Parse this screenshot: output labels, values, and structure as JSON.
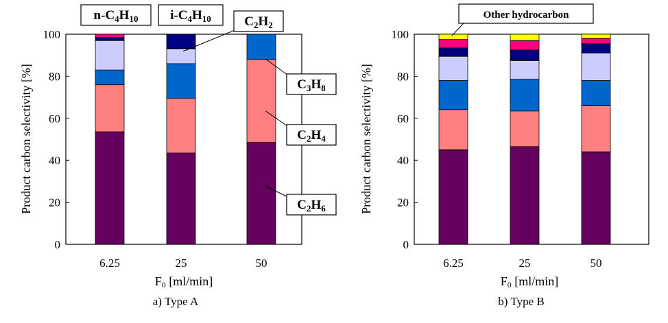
{
  "colors": {
    "C2H6": "#66005f",
    "C2H4": "#ff8080",
    "C3H8": "#0066cc",
    "C2H2": "#ccccff",
    "i-C4H10": "#000080",
    "n-C4H10": "#ff0080",
    "other": "#ffff00"
  },
  "chart_data": [
    {
      "type": "bar",
      "stacked": true,
      "categories": [
        "6.25",
        "25",
        "50"
      ],
      "xlabel": "F₀ [ml/min]",
      "ylabel": "Product carbon selectivity [%]",
      "caption": "a) Type A",
      "ylim": [
        0,
        100
      ],
      "yticks": [
        "0",
        "20",
        "40",
        "60",
        "80",
        "100"
      ],
      "series": [
        {
          "name": "C2H6",
          "key": "C2H6",
          "values": [
            53.5,
            43.5,
            48.5
          ]
        },
        {
          "name": "C2H4",
          "key": "C2H4",
          "values": [
            22.5,
            26.0,
            39.5
          ]
        },
        {
          "name": "C3H8",
          "key": "C3H8",
          "values": [
            7.0,
            16.5,
            12.0
          ]
        },
        {
          "name": "C2H2",
          "key": "C2H2",
          "values": [
            14.0,
            7.0,
            0.0
          ]
        },
        {
          "name": "i-C4H10",
          "key": "i-C4H10",
          "values": [
            1.5,
            7.0,
            0.0
          ]
        },
        {
          "name": "n-C4H10",
          "key": "n-C4H10",
          "values": [
            1.5,
            0.0,
            0.0
          ]
        },
        {
          "name": "Other hydrocarbon",
          "key": "other",
          "values": [
            0.0,
            0.0,
            0.0
          ]
        }
      ]
    },
    {
      "type": "bar",
      "stacked": true,
      "categories": [
        "6.25",
        "25",
        "50"
      ],
      "xlabel": "F₀ [ml/min]",
      "ylabel": "Product carbon selectivity [%]",
      "caption": "b) Type B",
      "ylim": [
        0,
        100
      ],
      "yticks": [
        "0",
        "20",
        "40",
        "60",
        "80",
        "100"
      ],
      "series": [
        {
          "name": "C2H6",
          "key": "C2H6",
          "values": [
            45.0,
            46.5,
            44.0
          ]
        },
        {
          "name": "C2H4",
          "key": "C2H4",
          "values": [
            19.0,
            17.0,
            22.0
          ]
        },
        {
          "name": "C3H8",
          "key": "C3H8",
          "values": [
            14.0,
            15.0,
            12.0
          ]
        },
        {
          "name": "C2H2",
          "key": "C2H2",
          "values": [
            11.5,
            9.0,
            13.0
          ]
        },
        {
          "name": "i-C4H10",
          "key": "i-C4H10",
          "values": [
            4.0,
            5.0,
            4.5
          ]
        },
        {
          "name": "n-C4H10",
          "key": "n-C4H10",
          "values": [
            4.0,
            4.5,
            2.5
          ]
        },
        {
          "name": "Other hydrocarbon",
          "key": "other",
          "values": [
            2.5,
            3.0,
            2.0
          ]
        }
      ]
    }
  ],
  "labels": {
    "n_C4H10": "n-C4H10",
    "i_C4H10": "i-C4H10",
    "C2H2": "C2H2",
    "C3H8": "C3H8",
    "C2H4": "C2H4",
    "C2H6": "C2H6",
    "other": "Other hydrocarbon"
  }
}
